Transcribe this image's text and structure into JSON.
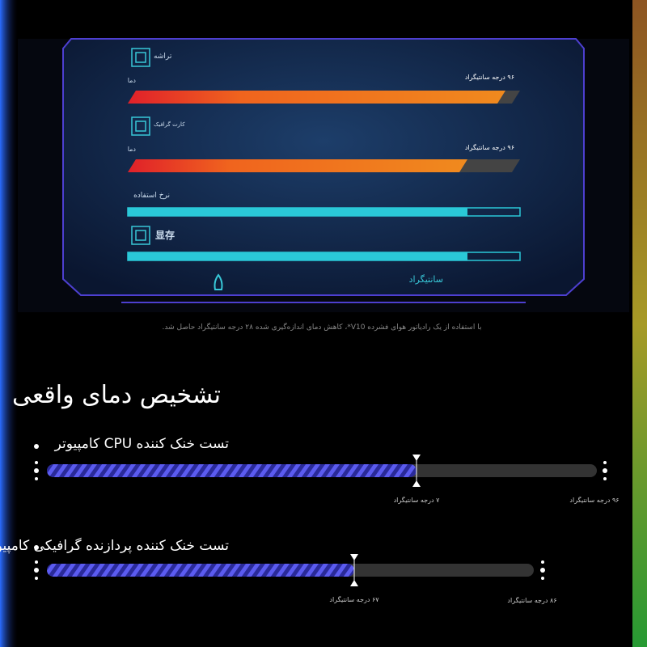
{
  "panel": {
    "chip_label": "تراشه",
    "chip_temp_label": "دما",
    "chip_temp": "۹۶ درجه سانتیگراد",
    "gpu_label": "کارت گرافیک",
    "gpu_temp_label": "دما",
    "gpu_temp": "۹۶ درجه سانتیگراد",
    "usage_label": "نرخ استفاده",
    "memory_label": "显存",
    "footer_label": "سانتیگراد"
  },
  "caption": "با استفاده از یک رادیاتور هوای فشرده V10*، کاهش دمای اندازه‌گیری شده ۲۸ درجه سانتیگراد حاصل شد.",
  "heading": "تشخیص دمای واقعی",
  "tests": [
    {
      "title": "تست خنک کننده CPU کامپیوتر",
      "after": "۷ درجه سانتیگراد",
      "before": "۹۶ درجه سانتیگراد"
    },
    {
      "title": "تست خنک کننده پردازنده گرافیکی کامپیوتر",
      "after": "۶۷ درجه سانتیگراد",
      "before": "۸۶ درجه سانتیگراد"
    }
  ]
}
